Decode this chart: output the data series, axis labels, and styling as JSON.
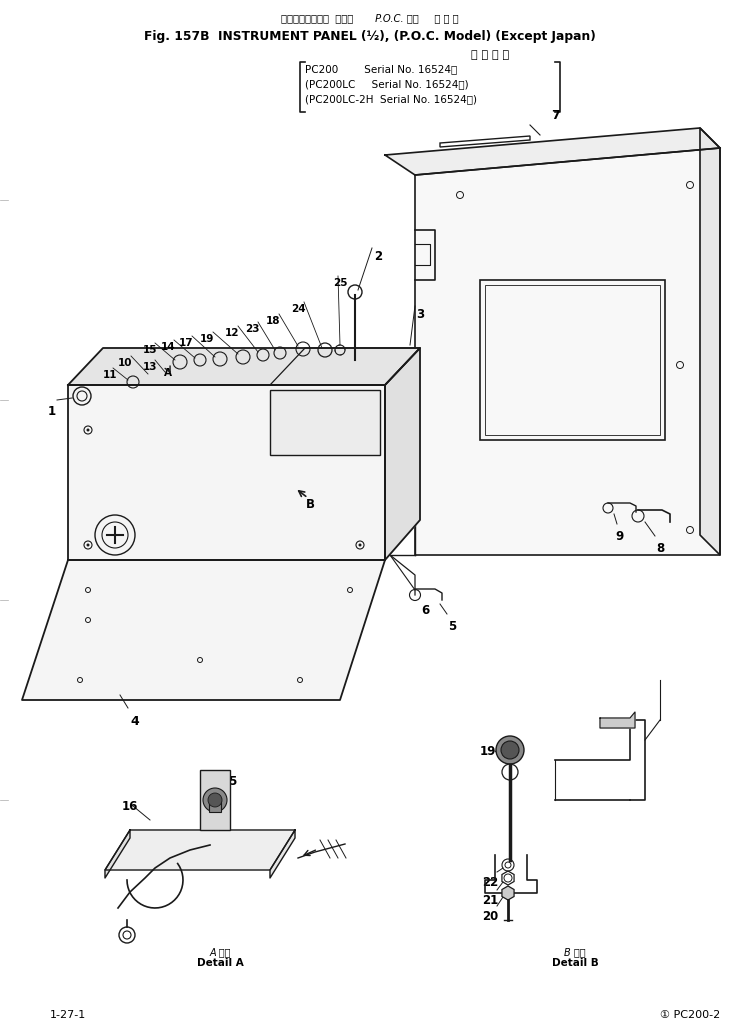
{
  "title_jp": "インスツルメント  パネル       P.O.C. 仕様     海 外 向",
  "title_en": "Fig. 157B  INSTRUMENT PANEL (½), (P.O.C. Model) (Except Japan)",
  "serial_header": "適 用 号 機",
  "serial_line1": "PC200        Serial No. 16524～",
  "serial_line2": "(PC200LC     Serial No. 16524～)",
  "serial_line3": "(PC200LC-2H  Serial No. 16524～)",
  "detail_a_jp": "A 詳細",
  "detail_a_en": "Detail A",
  "detail_b_jp": "B 詳細",
  "detail_b_en": "Detail B",
  "page_label": "1-27-1",
  "page_ref": "① PC200-2",
  "bg_color": "#ffffff",
  "lc": "#1a1a1a",
  "fig_width": 7.41,
  "fig_height": 10.29
}
